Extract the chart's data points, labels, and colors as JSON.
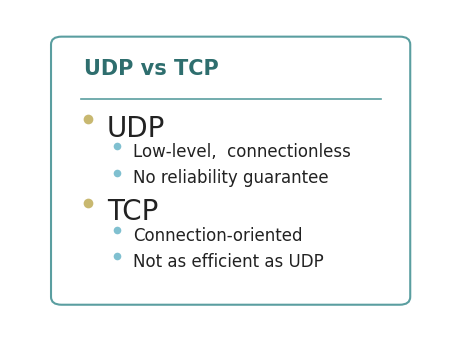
{
  "title": "UDP vs TCP",
  "title_color": "#2E6E6E",
  "title_fontsize": 15,
  "background_color": "#FFFFFF",
  "border_color": "#5A9EA0",
  "separator_color": "#5A9EA0",
  "main_bullet_color": "#C8B870",
  "sub_bullet_color": "#80C0D0",
  "text_color": "#222222",
  "items": [
    {
      "label": "UDP",
      "sub_items": [
        "Low-level,  connectionless",
        "No reliability guarantee"
      ]
    },
    {
      "label": "TCP",
      "sub_items": [
        "Connection-oriented",
        "Not as efficient as UDP"
      ]
    }
  ],
  "main_fontsize": 20,
  "sub_fontsize": 12,
  "figsize": [
    4.5,
    3.38
  ],
  "dpi": 100
}
